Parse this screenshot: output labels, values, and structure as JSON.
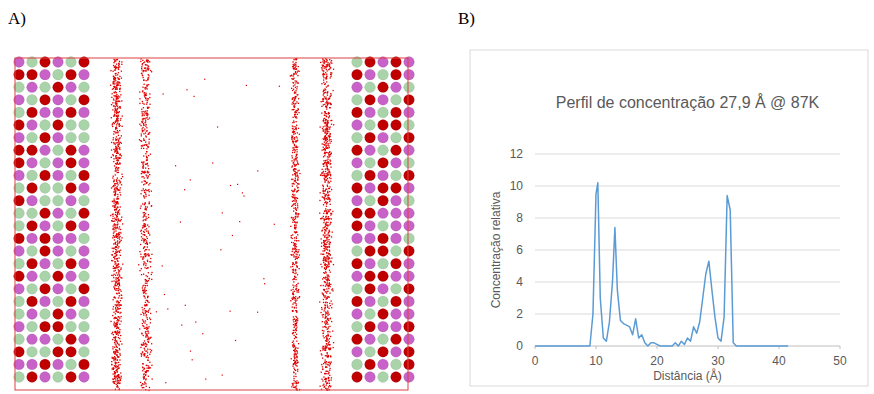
{
  "panels": {
    "a": {
      "label": "A)"
    },
    "b": {
      "label": "B)"
    }
  },
  "chart_data": {
    "type": "line",
    "title": "Perfil de concentração 27,9 Å @ 87K",
    "x_label": "Distância (Å)",
    "y_label": "Concentração relativa",
    "color": "#5b9bd5",
    "grid": true,
    "xlim": [
      0,
      50
    ],
    "xticks": [
      0,
      10,
      20,
      30,
      40,
      50
    ],
    "ylim": [
      0,
      12
    ],
    "yticks": [
      0,
      2,
      4,
      6,
      8,
      10,
      12
    ],
    "x": [
      0,
      1,
      2,
      3,
      4,
      5,
      6,
      7,
      8,
      9,
      9.5,
      10,
      10.3,
      10.7,
      11.2,
      11.7,
      12.2,
      12.7,
      13.1,
      13.5,
      14,
      14.5,
      15,
      15.5,
      16,
      16.5,
      17,
      17.5,
      18,
      18.5,
      19,
      19.5,
      20,
      20.5,
      21,
      21.5,
      22,
      22.5,
      23,
      23.5,
      24,
      24.5,
      25,
      25.5,
      26,
      26.5,
      27,
      27.5,
      28,
      28.5,
      29,
      29.5,
      30,
      30.5,
      31,
      31.5,
      32,
      32.5,
      33,
      34,
      36,
      38,
      40,
      41.5
    ],
    "values": [
      0,
      0,
      0,
      0,
      0,
      0,
      0,
      0,
      0,
      0,
      2,
      9.5,
      10.2,
      3,
      0.5,
      0.3,
      1.5,
      4,
      7.4,
      3.5,
      1.6,
      1.4,
      1.3,
      1.2,
      0.7,
      1.7,
      0.5,
      0.7,
      0.2,
      0,
      0.2,
      0.2,
      0.1,
      0,
      0,
      0,
      0,
      0,
      0.2,
      0,
      0.3,
      0.1,
      0.5,
      0.3,
      1.2,
      0.8,
      1.5,
      3,
      4.5,
      5.3,
      3.5,
      1.8,
      0.5,
      0.3,
      1.8,
      9.4,
      8.5,
      0.2,
      0,
      0,
      0,
      0,
      0,
      0
    ]
  }
}
